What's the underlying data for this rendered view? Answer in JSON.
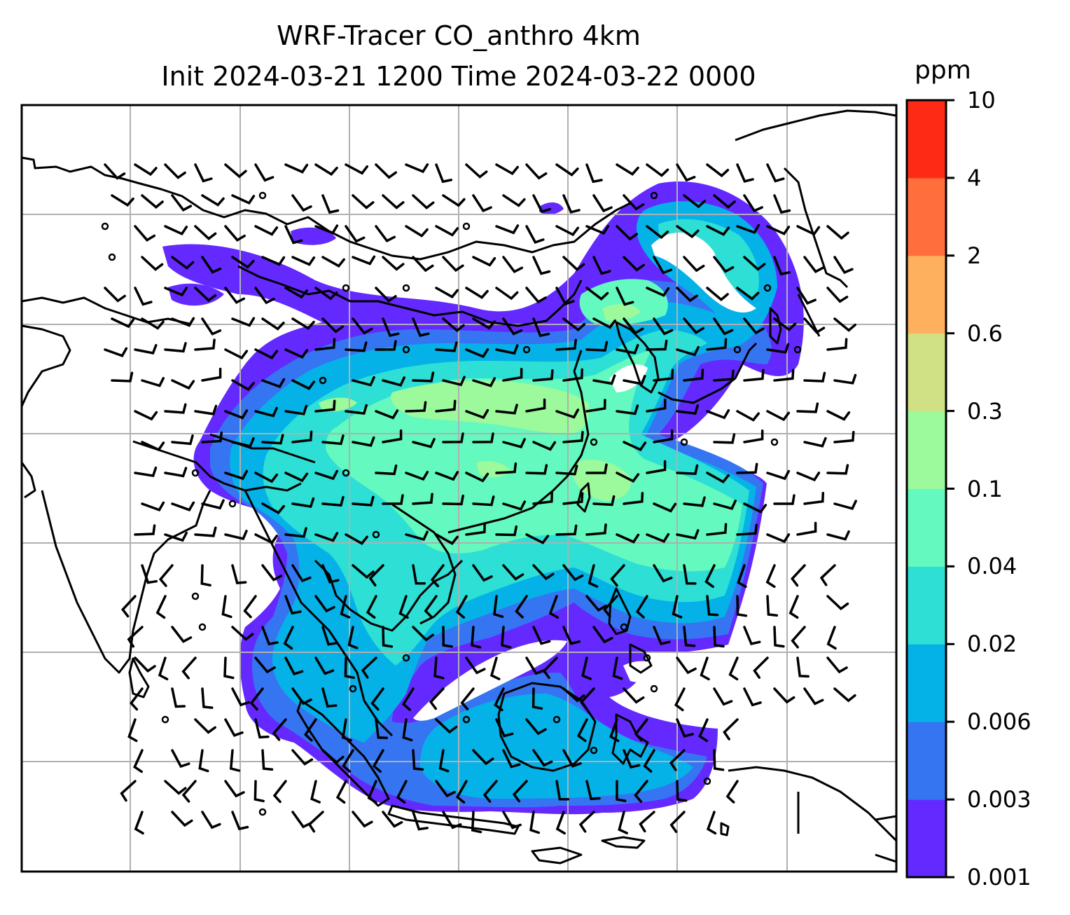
{
  "title": {
    "line1": "WRF-Tracer CO_anthro 4km",
    "line2": "Init 2024-03-21 1200 Time 2024-03-22 0000"
  },
  "colorbar": {
    "unit": "ppm",
    "levels": [
      "0.001",
      "0.003",
      "0.006",
      "0.02",
      "0.04",
      "0.1",
      "0.3",
      "0.6",
      "2",
      "4",
      "10"
    ],
    "colors": [
      "#6429ff",
      "#3675f2",
      "#04b2e8",
      "#2ddfd4",
      "#64f9bf",
      "#9cf99c",
      "#d0e084",
      "#feb05e",
      "#ff6e3b",
      "#ff2a16"
    ]
  },
  "map": {
    "field": "CO_anthro",
    "grid_lines": true,
    "wind_barbs": true
  }
}
